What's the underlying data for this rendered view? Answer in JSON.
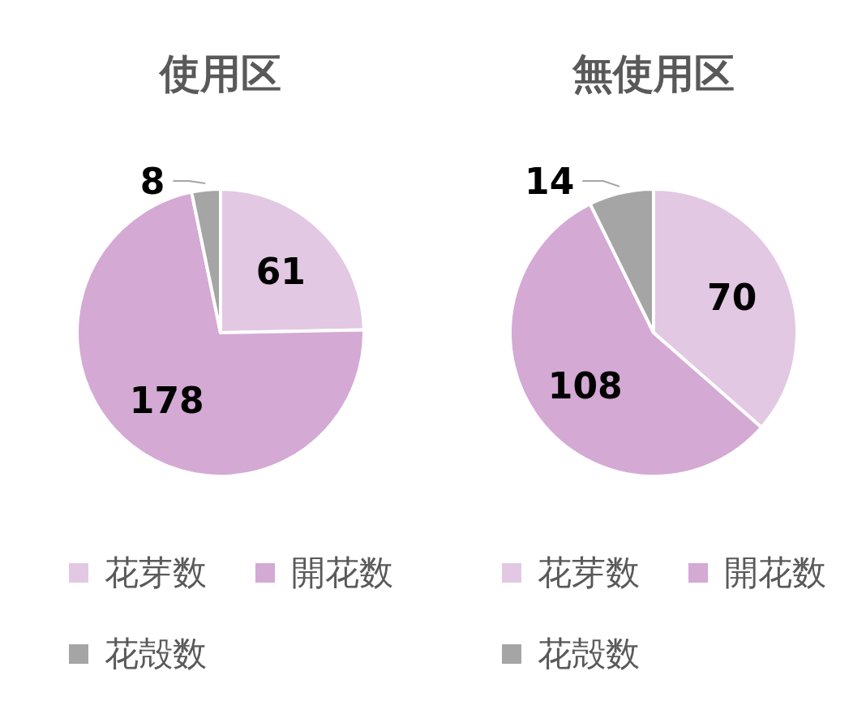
{
  "chart_data": [
    {
      "type": "pie",
      "title": "使用区",
      "categories": [
        "花芽数",
        "開花数",
        "花殻数"
      ],
      "values": [
        61,
        178,
        8
      ],
      "colors": [
        "#e2c8e3",
        "#d4a9d4",
        "#a5a5a5"
      ],
      "data_labels": true,
      "legend": "bottom"
    },
    {
      "type": "pie",
      "title": "無使用区",
      "categories": [
        "花芽数",
        "開花数",
        "花殻数"
      ],
      "values": [
        70,
        108,
        14
      ],
      "colors": [
        "#e2c8e3",
        "#d4a9d4",
        "#a5a5a5"
      ],
      "data_labels": true,
      "legend": "bottom"
    }
  ]
}
